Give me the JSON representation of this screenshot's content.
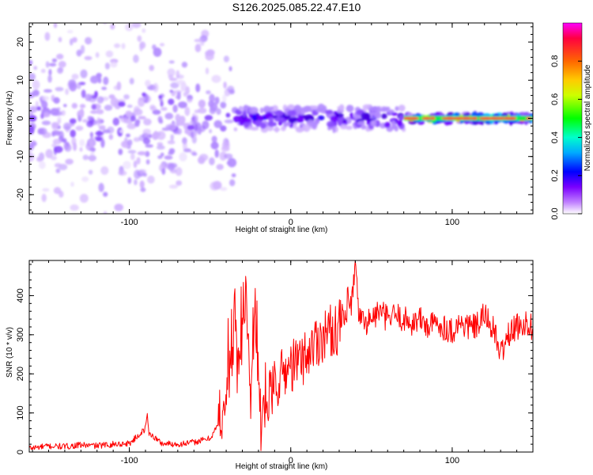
{
  "title": "S126.2025.085.22.47.E10",
  "chart_data": [
    {
      "type": "heatmap",
      "xlabel": "Height of straight line (km)",
      "ylabel": "Frequency (Hz)",
      "xlim": [
        -162,
        150
      ],
      "ylim": [
        -25,
        25
      ],
      "x_ticks": [
        "-100",
        "0",
        "100"
      ],
      "y_ticks": [
        "-20",
        "-10",
        "0",
        "10",
        "20"
      ],
      "grid": false,
      "colorbar": {
        "label": "Normalized spectral amplitude",
        "range": [
          0.0,
          1.0
        ],
        "ticks": [
          "0.0",
          "0.2",
          "0.4",
          "0.6",
          "0.8"
        ],
        "colors": [
          "#ffffff",
          "#7a00ff",
          "#0000ff",
          "#00ffff",
          "#00ff00",
          "#ffff00",
          "#ff8800",
          "#ff0040",
          "#ff00ff"
        ]
      },
      "regions": [
        {
          "x_range": [
            -162,
            -35
          ],
          "freq_spread_hz": 25,
          "amplitude": 0.1
        },
        {
          "x_range": [
            -35,
            70
          ],
          "freq_spread_hz": 3,
          "amplitude": 0.35
        },
        {
          "x_range": [
            70,
            150
          ],
          "freq_spread_hz": 1,
          "amplitude": 0.9
        }
      ]
    },
    {
      "type": "line",
      "xlabel": "Height of straight line (km)",
      "ylabel": "SNR (10 * v/v)",
      "xlim": [
        -162,
        150
      ],
      "ylim": [
        0,
        490
      ],
      "x_ticks": [
        "-100",
        "0",
        "100"
      ],
      "y_ticks": [
        "0",
        "100",
        "200",
        "300",
        "400"
      ],
      "color": "#ff0000",
      "grid": false,
      "series": [
        {
          "x": [
            -162,
            -150,
            -140,
            -130,
            -120,
            -110,
            -100,
            -95,
            -90,
            -89,
            -88,
            -80,
            -70,
            -60,
            -50,
            -45,
            -40,
            -36,
            -35,
            -34,
            -33,
            -30,
            -28,
            -26,
            -25,
            -22,
            -20,
            -18,
            -15,
            -10,
            -5,
            0,
            5,
            10,
            15,
            20,
            25,
            30,
            35,
            38,
            40,
            42,
            45,
            50,
            55,
            60,
            65,
            70,
            75,
            80,
            85,
            90,
            95,
            100,
            105,
            110,
            115,
            120,
            125,
            130,
            135,
            140,
            145,
            150
          ],
          "y": [
            10,
            15,
            14,
            18,
            16,
            20,
            22,
            40,
            60,
            100,
            50,
            22,
            20,
            25,
            35,
            70,
            150,
            230,
            390,
            300,
            200,
            260,
            400,
            250,
            110,
            400,
            150,
            70,
            120,
            170,
            200,
            220,
            230,
            250,
            280,
            300,
            310,
            320,
            350,
            380,
            470,
            360,
            330,
            340,
            360,
            340,
            350,
            340,
            330,
            340,
            320,
            330,
            320,
            310,
            330,
            320,
            320,
            350,
            320,
            250,
            300,
            320,
            330,
            320
          ]
        }
      ]
    }
  ]
}
